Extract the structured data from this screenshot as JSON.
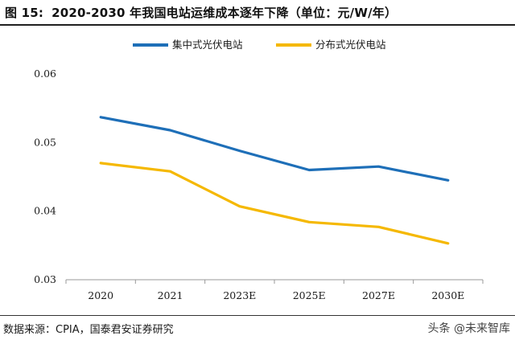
{
  "header": {
    "figure_number": "图 15:",
    "title": "2020-2030 年我国电站运维成本逐年下降（单位：元/W/年）"
  },
  "footer": {
    "source": "数据来源：CPIA，国泰君安证券研究",
    "watermark": "头条 @未来智库"
  },
  "chart_data": {
    "type": "line",
    "categories": [
      "2020",
      "2021",
      "2023E",
      "2025E",
      "2027E",
      "2030E"
    ],
    "series": [
      {
        "name": "集中式光伏电站",
        "color": "#1e6fb8",
        "values": [
          0.0537,
          0.0518,
          0.0488,
          0.046,
          0.0465,
          0.0445
        ]
      },
      {
        "name": "分布式光伏电站",
        "color": "#f5b800",
        "values": [
          0.047,
          0.0458,
          0.0407,
          0.0384,
          0.0377,
          0.0353
        ]
      }
    ],
    "yticks": [
      "0.03",
      "0.04",
      "0.05",
      "0.06"
    ],
    "ylim": [
      0.03,
      0.06
    ],
    "grid": false,
    "legend": "top-center"
  }
}
